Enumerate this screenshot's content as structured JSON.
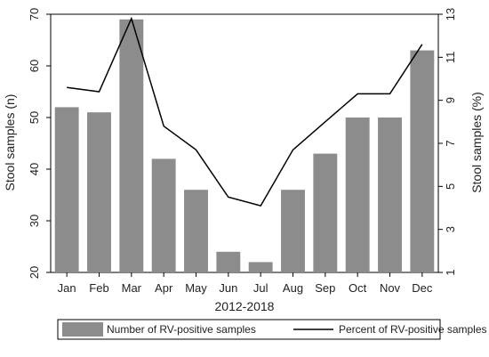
{
  "chart_data": {
    "type": "bar+line",
    "categories": [
      "Jan",
      "Feb",
      "Mar",
      "Apr",
      "May",
      "Jun",
      "Jul",
      "Aug",
      "Sep",
      "Oct",
      "Nov",
      "Dec"
    ],
    "xlabel": "2012-2018",
    "ylabel_left": "Stool samples (n)",
    "ylabel_right": "Stool samples (%)",
    "ylim_left": [
      20,
      70
    ],
    "yticks_left": [
      "20",
      "30",
      "40",
      "50",
      "60",
      "70"
    ],
    "ylim_right": [
      1,
      13
    ],
    "yticks_right": [
      "1",
      "3",
      "5",
      "7",
      "9",
      "11",
      "13"
    ],
    "grid": false,
    "legend_position": "bottom",
    "series": [
      {
        "name": "Number of RV-positive samples",
        "kind": "bar",
        "axis": "left",
        "values": [
          52,
          51,
          69,
          42,
          36,
          24,
          22,
          36,
          43,
          50,
          50,
          63
        ]
      },
      {
        "name": "Percent of RV-positive samples",
        "kind": "line",
        "axis": "right",
        "values": [
          9.6,
          9.4,
          12.8,
          7.8,
          6.7,
          4.5,
          4.1,
          6.7,
          8.0,
          9.3,
          9.3,
          11.6
        ]
      }
    ],
    "colors": {
      "bar": "#8c8c8c",
      "line": "#000000"
    }
  }
}
